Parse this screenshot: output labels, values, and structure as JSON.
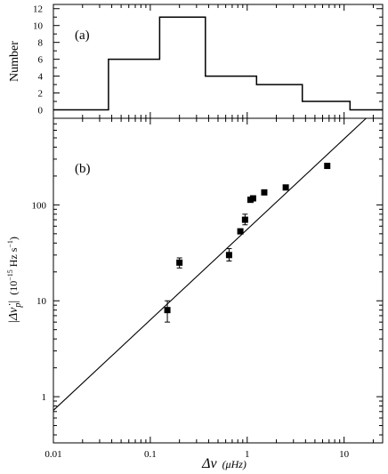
{
  "chart_data": [
    {
      "type": "histogram",
      "panel_label": "(a)",
      "ylabel": "Number",
      "x_scale": "log",
      "xlim": [
        0.01,
        25
      ],
      "ylim": [
        -1,
        12.5
      ],
      "yticks": [
        "0",
        "2",
        "4",
        "6",
        "8",
        "10",
        "12"
      ],
      "bins": [
        {
          "x0": 0.01,
          "x1": 0.037,
          "count": 0
        },
        {
          "x0": 0.037,
          "x1": 0.125,
          "count": 6
        },
        {
          "x0": 0.125,
          "x1": 0.37,
          "count": 11
        },
        {
          "x0": 0.37,
          "x1": 1.25,
          "count": 4
        },
        {
          "x0": 1.25,
          "x1": 3.7,
          "count": 3
        },
        {
          "x0": 3.7,
          "x1": 11.5,
          "count": 1
        },
        {
          "x0": 11.5,
          "x1": 25,
          "count": 0
        }
      ]
    },
    {
      "type": "scatter",
      "panel_label": "(b)",
      "ylabel_main": "|Δν̇",
      "ylabel_sub": "p",
      "ylabel_close": "|",
      "ylabel_unit_a": "(10",
      "ylabel_unit_exp": "−15",
      "ylabel_unit_b": " Hz s",
      "ylabel_unit_exp2": "−1",
      "ylabel_unit_c": ")",
      "xlabel_main": "Δν",
      "xlabel_unit": "(μHz)",
      "x_scale": "log",
      "y_scale": "log",
      "xlim": [
        0.01,
        25
      ],
      "ylim": [
        0.33,
        800
      ],
      "xticks": [
        {
          "value": 0.01,
          "label": "0.01"
        },
        {
          "value": 0.1,
          "label": "0.1"
        },
        {
          "value": 1,
          "label": "1"
        },
        {
          "value": 10,
          "label": "10"
        }
      ],
      "yticks": [
        {
          "value": 1,
          "label": "1"
        },
        {
          "value": 10,
          "label": "10"
        },
        {
          "value": 100,
          "label": "100"
        }
      ],
      "points": [
        {
          "x": 0.15,
          "y": 8,
          "err_lo": 6,
          "err_hi": 10
        },
        {
          "x": 0.2,
          "y": 25,
          "err_lo": 22,
          "err_hi": 28
        },
        {
          "x": 0.65,
          "y": 30,
          "err_lo": 26,
          "err_hi": 35
        },
        {
          "x": 0.85,
          "y": 53,
          "err_lo": 51,
          "err_hi": 55
        },
        {
          "x": 0.95,
          "y": 70,
          "err_lo": 62,
          "err_hi": 80
        },
        {
          "x": 1.08,
          "y": 113,
          "err_lo": 109,
          "err_hi": 117
        },
        {
          "x": 1.15,
          "y": 117,
          "err_lo": 113,
          "err_hi": 121
        },
        {
          "x": 1.5,
          "y": 135,
          "err_lo": 131,
          "err_hi": 139
        },
        {
          "x": 2.5,
          "y": 152,
          "err_lo": 148,
          "err_hi": 156
        },
        {
          "x": 6.7,
          "y": 255,
          "err_lo": 248,
          "err_hi": 262
        }
      ],
      "fit_line": {
        "x": [
          0.01,
          18
        ],
        "y": [
          0.72,
          850
        ]
      }
    }
  ]
}
